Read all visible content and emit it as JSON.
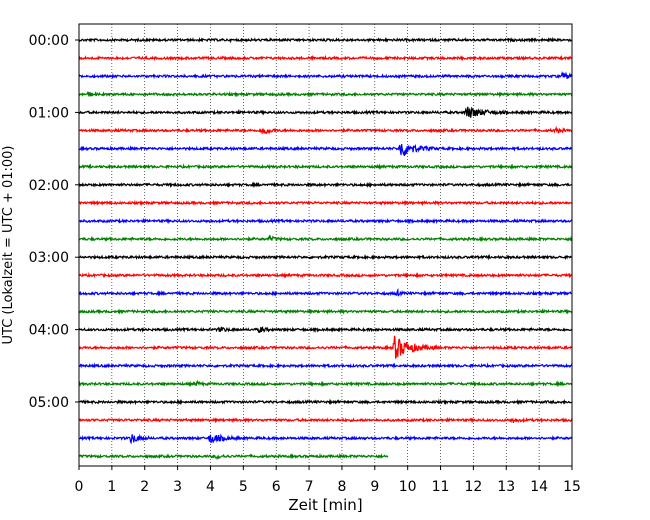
{
  "chart_data": {
    "type": "line",
    "title": "",
    "xlabel": "Zeit  [min]",
    "ylabel": "UTC (Lokalzeit = UTC + 01:00)",
    "xlim": [
      0,
      15
    ],
    "x_ticks": [
      "0",
      "1",
      "2",
      "3",
      "4",
      "5",
      "6",
      "7",
      "8",
      "9",
      "10",
      "11",
      "12",
      "13",
      "14",
      "15"
    ],
    "y_ticks": [
      "00:00",
      "01:00",
      "02:00",
      "03:00",
      "04:00",
      "05:00"
    ],
    "vertical_grid": true,
    "horizontal_grid": false,
    "legend": "none",
    "row_interval_minutes": 15,
    "colors": [
      "#000000",
      "#ff0000",
      "#0000ff",
      "#008000"
    ],
    "rows": [
      {
        "start": "00:00",
        "color": "#000000",
        "end_min": 15,
        "events": []
      },
      {
        "start": "00:15",
        "color": "#ff0000",
        "end_min": 15,
        "events": []
      },
      {
        "start": "00:30",
        "color": "#0000ff",
        "end_min": 15,
        "events": [
          {
            "t": 14.7,
            "amp": 0.45,
            "dur": 0.6
          }
        ]
      },
      {
        "start": "00:45",
        "color": "#008000",
        "end_min": 15,
        "events": [
          {
            "t": 0.3,
            "amp": 0.3,
            "dur": 0.3
          }
        ]
      },
      {
        "start": "01:00",
        "color": "#000000",
        "end_min": 15,
        "events": [
          {
            "t": 11.8,
            "amp": 0.85,
            "dur": 1.2
          }
        ]
      },
      {
        "start": "01:15",
        "color": "#ff0000",
        "end_min": 15,
        "events": [
          {
            "t": 5.6,
            "amp": 0.55,
            "dur": 0.5
          },
          {
            "t": 14.5,
            "amp": 0.3,
            "dur": 0.4
          }
        ]
      },
      {
        "start": "01:30",
        "color": "#0000ff",
        "end_min": 15,
        "events": [
          {
            "t": 9.8,
            "amp": 1.3,
            "dur": 1.0
          }
        ]
      },
      {
        "start": "01:45",
        "color": "#008000",
        "end_min": 15,
        "events": []
      },
      {
        "start": "02:00",
        "color": "#000000",
        "end_min": 15,
        "events": []
      },
      {
        "start": "02:15",
        "color": "#ff0000",
        "end_min": 15,
        "events": []
      },
      {
        "start": "02:30",
        "color": "#0000ff",
        "end_min": 15,
        "events": []
      },
      {
        "start": "02:45",
        "color": "#008000",
        "end_min": 15,
        "events": [
          {
            "t": 5.8,
            "amp": 0.35,
            "dur": 0.4
          }
        ]
      },
      {
        "start": "03:00",
        "color": "#000000",
        "end_min": 15,
        "events": []
      },
      {
        "start": "03:15",
        "color": "#ff0000",
        "end_min": 15,
        "events": []
      },
      {
        "start": "03:30",
        "color": "#0000ff",
        "end_min": 15,
        "events": [
          {
            "t": 9.7,
            "amp": 0.35,
            "dur": 0.2
          }
        ]
      },
      {
        "start": "03:45",
        "color": "#008000",
        "end_min": 15,
        "events": []
      },
      {
        "start": "04:00",
        "color": "#000000",
        "end_min": 15,
        "events": [
          {
            "t": 4.3,
            "amp": 0.35,
            "dur": 0.4
          },
          {
            "t": 5.5,
            "amp": 0.4,
            "dur": 0.4
          }
        ]
      },
      {
        "start": "04:15",
        "color": "#ff0000",
        "end_min": 15,
        "events": [
          {
            "t": 9.6,
            "amp": 1.6,
            "dur": 1.3
          }
        ]
      },
      {
        "start": "04:30",
        "color": "#0000ff",
        "end_min": 15,
        "events": []
      },
      {
        "start": "04:45",
        "color": "#008000",
        "end_min": 15,
        "events": [
          {
            "t": 3.6,
            "amp": 0.3,
            "dur": 0.2
          }
        ]
      },
      {
        "start": "05:00",
        "color": "#000000",
        "end_min": 15,
        "events": []
      },
      {
        "start": "05:15",
        "color": "#ff0000",
        "end_min": 15,
        "events": [
          {
            "t": 13.2,
            "amp": 0.3,
            "dur": 0.4
          }
        ]
      },
      {
        "start": "05:30",
        "color": "#0000ff",
        "end_min": 15,
        "events": [
          {
            "t": 1.6,
            "amp": 0.7,
            "dur": 0.6
          },
          {
            "t": 4.0,
            "amp": 0.7,
            "dur": 0.9
          }
        ]
      },
      {
        "start": "05:45",
        "color": "#008000",
        "end_min": 9.4,
        "events": [
          {
            "t": 4.2,
            "amp": 0.25,
            "dur": 0.5
          }
        ]
      }
    ]
  }
}
